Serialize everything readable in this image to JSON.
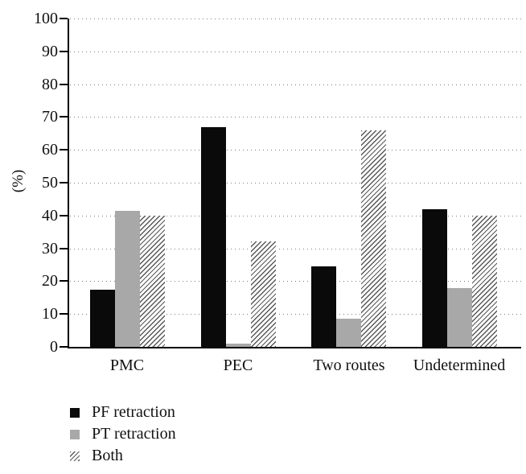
{
  "chart_data": {
    "type": "bar",
    "title": "",
    "xlabel": "",
    "ylabel": "(%)",
    "ylim": [
      0,
      100
    ],
    "yticks": [
      0,
      10,
      20,
      30,
      40,
      50,
      60,
      70,
      80,
      90,
      100
    ],
    "grid": "dotted-horizontal",
    "legend_position": "bottom-left",
    "categories": [
      "PMC",
      "PEC",
      "Two routes",
      "Undetermined"
    ],
    "series": [
      {
        "name": "PF retraction",
        "style": "solid",
        "color": "#0a0a0a",
        "values": [
          17.5,
          67,
          24.5,
          42
        ]
      },
      {
        "name": "PT retraction",
        "style": "solid",
        "color": "#a8a8a8",
        "values": [
          41.5,
          1,
          8.5,
          18
        ]
      },
      {
        "name": "Both",
        "style": "hatched",
        "color": "#ffffff",
        "hatch_color": "#585858",
        "values": [
          40,
          32,
          66,
          40
        ]
      }
    ],
    "colors": {
      "axis": "#000000",
      "grid_dot": "#7d7d7d",
      "text": "#111111",
      "background": "#ffffff"
    }
  }
}
